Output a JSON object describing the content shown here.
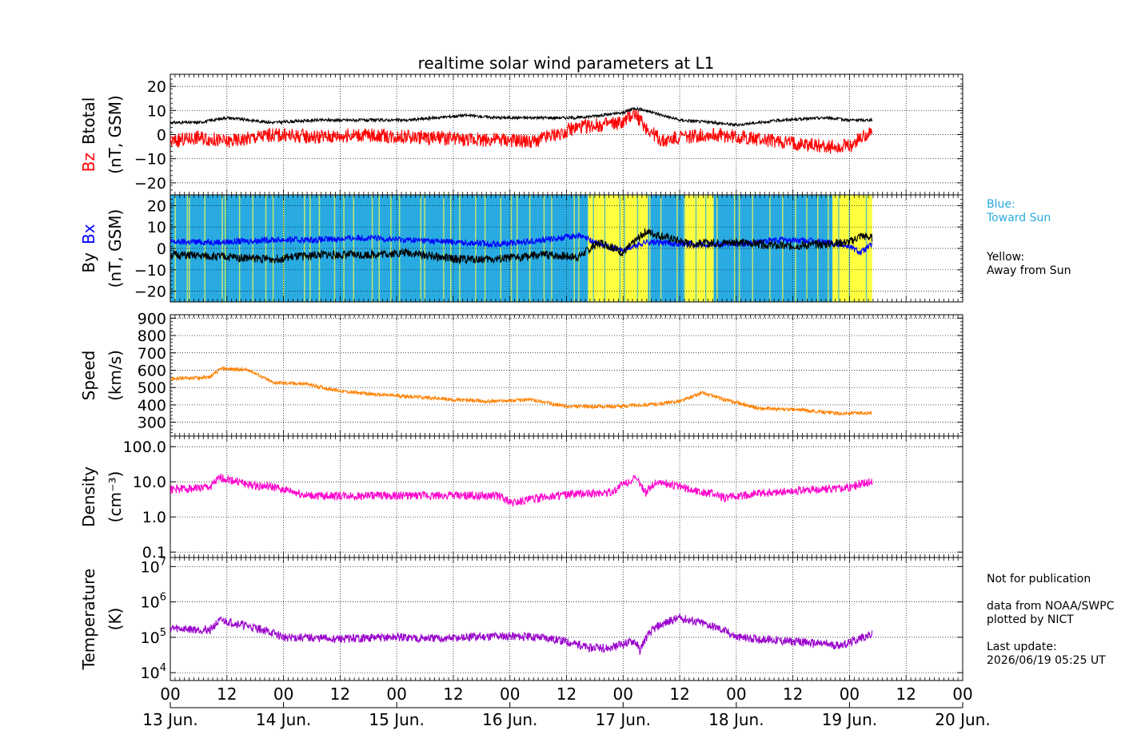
{
  "title": "realtime solar wind parameters at L1",
  "colors": {
    "btotal": "#000000",
    "bz": "#ff0000",
    "bx": "#0000ff",
    "by": "#000000",
    "speed": "#ff8000",
    "density": "#ff00cc",
    "temperature": "#9900cc",
    "toward_sun": "#29abe2",
    "away_sun": "#ffff40"
  },
  "legend": {
    "blue_label": "Blue:",
    "blue_text": "Toward Sun",
    "yellow_label": "Yellow:",
    "yellow_text": "Away from Sun"
  },
  "notes": {
    "publication": "Not for publication",
    "source1": "data from NOAA/SWPC",
    "source2": "plotted by NICT",
    "update_label": "Last update:",
    "update_time": "2026/06/19 05:25 UT"
  },
  "chart_data": [
    {
      "id": "bfield",
      "type": "line",
      "ylabel_parts": [
        "Bz",
        "Btotal"
      ],
      "ylabel_unit": "(nT, GSM)",
      "ylim": [
        -25,
        25
      ],
      "yticks": [
        20,
        10,
        0,
        -10,
        -20
      ],
      "ytick_labels": [
        "20",
        "10",
        "0",
        "−10",
        "−20"
      ],
      "series": [
        {
          "name": "Btotal",
          "x": [
            0,
            0.25,
            0.5,
            0.9,
            1.3,
            1.7,
            2.1,
            2.6,
            2.9,
            3.2,
            3.6,
            4.0,
            4.1,
            4.2,
            4.35,
            4.5,
            4.8,
            5.0,
            5.4,
            5.8,
            6.0,
            6.2
          ],
          "y": [
            5,
            5,
            7,
            5,
            6,
            6,
            6,
            8,
            7,
            7,
            7,
            9,
            11,
            10,
            8,
            6,
            5,
            4,
            6,
            7,
            6,
            6
          ]
        },
        {
          "name": "Bz",
          "x": [
            0,
            0.25,
            0.5,
            0.9,
            1.3,
            1.7,
            2.1,
            2.6,
            2.9,
            3.2,
            3.6,
            4.0,
            4.1,
            4.2,
            4.35,
            4.5,
            4.8,
            5.0,
            5.4,
            5.8,
            6.0,
            6.2
          ],
          "y": [
            -3,
            -1,
            -3,
            0,
            -1,
            0,
            -1,
            -2,
            -2,
            -3,
            3,
            5,
            9,
            3,
            -3,
            -1,
            0,
            -1,
            -3,
            -5,
            -5,
            2
          ]
        }
      ]
    },
    {
      "id": "bxy",
      "type": "line",
      "ylabel_parts": [
        "By",
        "Bx"
      ],
      "ylabel_unit": "(nT, GSM)",
      "ylim": [
        -25,
        25
      ],
      "yticks": [
        20,
        10,
        0,
        -10,
        -20
      ],
      "ytick_labels": [
        "20",
        "10",
        "0",
        "−10",
        "−20"
      ],
      "sector_bands": [
        {
          "start": 0,
          "end": 3.69,
          "sector": "toward"
        },
        {
          "start": 3.69,
          "end": 4.22,
          "sector": "away"
        },
        {
          "start": 4.22,
          "end": 4.55,
          "sector": "toward"
        },
        {
          "start": 4.55,
          "end": 4.8,
          "sector": "away"
        },
        {
          "start": 4.8,
          "end": 5.85,
          "sector": "toward"
        },
        {
          "start": 5.85,
          "end": 6.2,
          "sector": "away"
        }
      ],
      "series": [
        {
          "name": "Bx",
          "x": [
            0,
            0.5,
            0.9,
            1.3,
            1.7,
            2.1,
            2.5,
            2.9,
            3.3,
            3.6,
            3.8,
            4.0,
            4.2,
            4.6,
            5.0,
            5.4,
            5.8,
            6.0,
            6.1,
            6.2
          ],
          "y": [
            3,
            3,
            4,
            4,
            5,
            4,
            3,
            2,
            4,
            6,
            2,
            -1,
            3,
            2,
            2,
            4,
            3,
            1,
            -2,
            2
          ]
        },
        {
          "name": "By",
          "x": [
            0,
            0.5,
            0.9,
            1.3,
            1.7,
            2.1,
            2.5,
            2.9,
            3.3,
            3.6,
            3.8,
            4.0,
            4.2,
            4.6,
            5.0,
            5.4,
            5.8,
            6.0,
            6.1,
            6.2
          ],
          "y": [
            -3,
            -4,
            -5,
            -3,
            -3,
            -2,
            -5,
            -5,
            -3,
            -4,
            3,
            -2,
            8,
            2,
            3,
            1,
            2,
            3,
            6,
            5
          ]
        }
      ]
    },
    {
      "id": "speed",
      "type": "line",
      "ylabel": "Speed",
      "ylabel_unit": "(km/s)",
      "ylim": [
        220,
        920
      ],
      "yticks": [
        900,
        800,
        700,
        600,
        500,
        400,
        300
      ],
      "ytick_labels": [
        "900",
        "800",
        "700",
        "600",
        "500",
        "400",
        "300"
      ],
      "series": [
        {
          "name": "Speed",
          "x": [
            0,
            0.35,
            0.45,
            0.7,
            0.9,
            1.2,
            1.5,
            1.8,
            2.1,
            2.5,
            2.8,
            3.2,
            3.5,
            3.9,
            4.3,
            4.5,
            4.7,
            4.9,
            5.2,
            5.6,
            5.9,
            6.2
          ],
          "y": [
            550,
            560,
            610,
            600,
            530,
            520,
            480,
            460,
            450,
            430,
            420,
            430,
            390,
            390,
            405,
            420,
            470,
            430,
            380,
            370,
            350,
            355
          ]
        }
      ]
    },
    {
      "id": "density",
      "type": "line",
      "log": true,
      "ylabel": "Density",
      "ylabel_unit": "(cm⁻³)",
      "ylim": [
        0.07,
        200
      ],
      "yticks": [
        100,
        10,
        1,
        0.1
      ],
      "ytick_labels": [
        "100.0",
        "10.0",
        "1.0",
        "0.1"
      ],
      "series": [
        {
          "name": "Density",
          "x": [
            0,
            0.35,
            0.45,
            0.7,
            0.9,
            1.2,
            1.6,
            2.0,
            2.4,
            2.9,
            3.0,
            3.4,
            3.9,
            4.1,
            4.2,
            4.3,
            4.6,
            4.9,
            5.3,
            5.7,
            6.0,
            6.2
          ],
          "y": [
            6,
            7,
            13,
            8,
            7,
            4,
            4,
            4,
            4,
            4,
            2.5,
            4,
            5,
            12,
            5,
            10,
            6,
            3.5,
            5,
            6,
            7,
            10
          ]
        }
      ]
    },
    {
      "id": "temperature",
      "type": "line",
      "log": true,
      "ylabel": "Temperature",
      "ylabel_unit": "(K)",
      "ylim": [
        6000,
        18000000
      ],
      "yticks": [
        10000000,
        1000000,
        100000,
        10000
      ],
      "ytick_labels": [
        "10^7",
        "10^6",
        "10^5",
        "10^4"
      ],
      "series": [
        {
          "name": "Temperature",
          "x": [
            0,
            0.35,
            0.45,
            0.7,
            1.0,
            1.5,
            2.0,
            2.4,
            2.9,
            3.3,
            3.7,
            3.9,
            4.1,
            4.15,
            4.3,
            4.5,
            4.7,
            5.0,
            5.4,
            5.9,
            6.0,
            6.2
          ],
          "y": [
            180000,
            160000,
            300000,
            200000,
            100000,
            90000,
            100000,
            90000,
            110000,
            100000,
            50000,
            50000,
            80000,
            40000,
            200000,
            350000,
            250000,
            100000,
            80000,
            60000,
            70000,
            120000
          ]
        }
      ]
    }
  ],
  "x_axis": {
    "xlim": [
      0,
      7
    ],
    "hour_labels": [
      "00",
      "12",
      "00",
      "12",
      "00",
      "12",
      "00",
      "12",
      "00",
      "12",
      "00",
      "12",
      "00",
      "12",
      "00"
    ],
    "day_labels": [
      "13 Jun.",
      "14 Jun.",
      "15 Jun.",
      "16 Jun.",
      "17 Jun.",
      "18 Jun.",
      "19 Jun.",
      "20 Jun."
    ]
  }
}
